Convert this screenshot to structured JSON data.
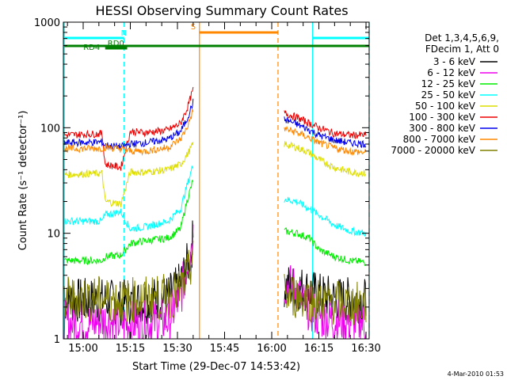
{
  "chart_data": {
    "type": "line",
    "title": "HESSI Observing Summary Count Rates",
    "xlabel": "Start Time (29-Dec-07 14:53:42)",
    "ylabel": "Count Rate (s⁻¹ detector⁻¹)",
    "yscale": "log",
    "ylim": [
      1,
      1000
    ],
    "xlim": [
      "14:53:42",
      "16:31:00"
    ],
    "x_ticks": [
      "15:00",
      "15:15",
      "15:30",
      "15:45",
      "16:00",
      "16:15",
      "16:30"
    ],
    "y_ticks": [
      "1",
      "10",
      "100",
      "1000"
    ],
    "legend_header": [
      "Det 1,3,4,5,6,9,",
      "FDecim 1, Att 0"
    ],
    "legend_position": "right",
    "data_gap": [
      "15:35",
      "16:04"
    ],
    "series": [
      {
        "name": "3 - 6 keV",
        "color": "#000000",
        "segments": [
          {
            "x": [
              "14:54",
              "15:06",
              "15:12",
              "15:20",
              "15:27",
              "15:30",
              "15:32",
              "15:34",
              "15:35"
            ],
            "y": [
              2.3,
              2.3,
              2.2,
              2.3,
              2.5,
              3,
              4,
              6,
              9
            ]
          },
          {
            "x": [
              "16:04",
              "16:10",
              "16:15",
              "16:20",
              "16:30"
            ],
            "y": [
              3.2,
              3,
              2.6,
              2.4,
              2.3
            ]
          }
        ]
      },
      {
        "name": "6 - 12 keV",
        "color": "#ee00ee",
        "segments": [
          {
            "x": [
              "14:54",
              "15:03",
              "15:06",
              "15:12",
              "15:20",
              "15:27",
              "15:31",
              "15:33",
              "15:35"
            ],
            "y": [
              1.4,
              1.4,
              1.5,
              1.4,
              1.4,
              1.5,
              2.5,
              5,
              10
            ]
          },
          {
            "x": [
              "16:04",
              "16:08",
              "16:10",
              "16:15",
              "16:20",
              "16:30"
            ],
            "y": [
              3.3,
              3,
              2.2,
              1.6,
              1.5,
              1.4
            ]
          }
        ]
      },
      {
        "name": "12 - 25 keV",
        "color": "#00ee00",
        "segments": [
          {
            "x": [
              "14:54",
              "15:06",
              "15:07",
              "15:12",
              "15:15",
              "15:20",
              "15:27",
              "15:31",
              "15:33",
              "15:35"
            ],
            "y": [
              5.5,
              5.5,
              6,
              6.2,
              8,
              8.5,
              9,
              11,
              20,
              32
            ]
          },
          {
            "x": [
              "16:04",
              "16:08",
              "16:12",
              "16:15",
              "16:20",
              "16:25",
              "16:30"
            ],
            "y": [
              10.5,
              10,
              9,
              7,
              6,
              5.5,
              5.3
            ]
          }
        ]
      },
      {
        "name": "25 - 50 keV",
        "color": "#00ffff",
        "segments": [
          {
            "x": [
              "14:54",
              "15:06",
              "15:07",
              "15:12",
              "15:15",
              "15:20",
              "15:27",
              "15:31",
              "15:33",
              "15:35"
            ],
            "y": [
              13,
              13,
              15,
              16,
              11,
              11.5,
              13,
              17,
              28,
              45
            ]
          },
          {
            "x": [
              "16:04",
              "16:08",
              "16:12",
              "16:15",
              "16:20",
              "16:25",
              "16:30"
            ],
            "y": [
              21,
              20,
              17,
              15,
              12,
              10.5,
              10
            ]
          }
        ]
      },
      {
        "name": "50 - 100 keV",
        "color": "#dddd00",
        "segments": [
          {
            "x": [
              "14:54",
              "15:06",
              "15:07",
              "15:12",
              "15:15",
              "15:20",
              "15:27",
              "15:31",
              "15:33",
              "15:35"
            ],
            "y": [
              36,
              37,
              20,
              19,
              38,
              38,
              40,
              45,
              55,
              70
            ]
          },
          {
            "x": [
              "16:04",
              "16:08",
              "16:12",
              "16:15",
              "16:20",
              "16:25",
              "16:30"
            ],
            "y": [
              70,
              65,
              58,
              50,
              42,
              38,
              37
            ]
          }
        ]
      },
      {
        "name": "100 - 300 keV",
        "color": "#ee0000",
        "segments": [
          {
            "x": [
              "14:54",
              "15:06",
              "15:07",
              "15:12",
              "15:15",
              "15:20",
              "15:27",
              "15:31",
              "15:33",
              "15:35"
            ],
            "y": [
              85,
              88,
              45,
              42,
              92,
              90,
              95,
              110,
              150,
              230
            ]
          },
          {
            "x": [
              "16:04",
              "16:08",
              "16:12",
              "16:15",
              "16:20",
              "16:25",
              "16:30"
            ],
            "y": [
              138,
              125,
              110,
              100,
              88,
              85,
              85
            ]
          }
        ]
      },
      {
        "name": "300 - 800 keV",
        "color": "#0000ee",
        "segments": [
          {
            "x": [
              "14:54",
              "15:06",
              "15:07",
              "15:12",
              "15:15",
              "15:20",
              "15:27",
              "15:31",
              "15:33",
              "15:35"
            ],
            "y": [
              72,
              73,
              68,
              66,
              70,
              72,
              78,
              92,
              120,
              175
            ]
          },
          {
            "x": [
              "16:04",
              "16:08",
              "16:12",
              "16:15",
              "16:20",
              "16:25",
              "16:30"
            ],
            "y": [
              120,
              108,
              95,
              85,
              76,
              72,
              70
            ]
          }
        ]
      },
      {
        "name": "800 - 7000 keV",
        "color": "#ff8800",
        "segments": [
          {
            "x": [
              "14:54",
              "15:06",
              "15:07",
              "15:12",
              "15:15",
              "15:20",
              "15:27",
              "15:31",
              "15:33",
              "15:35"
            ],
            "y": [
              63,
              64,
              65,
              63,
              60,
              60,
              65,
              78,
              100,
              145
            ]
          },
          {
            "x": [
              "16:04",
              "16:08",
              "16:12",
              "16:15",
              "16:20",
              "16:25",
              "16:30"
            ],
            "y": [
              98,
              90,
              80,
              72,
              64,
              60,
              58
            ]
          }
        ]
      },
      {
        "name": "7000 - 20000 keV",
        "color": "#808000",
        "segments": [
          {
            "x": [
              "14:54",
              "15:06",
              "15:12",
              "15:20",
              "15:27",
              "15:30",
              "15:32",
              "15:34",
              "15:35"
            ],
            "y": [
              2.4,
              2.4,
              2.3,
              2.4,
              2.5,
              2.7,
              3.3,
              4.5,
              7
            ]
          },
          {
            "x": [
              "16:04",
              "16:10",
              "16:15",
              "16:20",
              "16:30"
            ],
            "y": [
              2.6,
              2.5,
              2.3,
              2.2,
              2.1
            ]
          }
        ]
      }
    ],
    "annotations": [
      {
        "label": "N",
        "color": "#00ffff",
        "segments": [
          [
            "14:54",
            "15:13"
          ],
          [
            "16:13",
            "16:31"
          ]
        ]
      },
      {
        "label": "S",
        "color": "#ff8800",
        "segments": [
          [
            "15:37",
            "16:02"
          ]
        ]
      },
      {
        "label": "RD0",
        "color": "#008000",
        "segments": [
          [
            "15:07",
            "15:14"
          ]
        ]
      },
      {
        "label": "RD4",
        "color": "#008000",
        "segments": [
          [
            "14:54",
            "16:31"
          ]
        ]
      }
    ],
    "vertical_lines": [
      {
        "x": "14:54",
        "color": "#00ffff",
        "style": "solid"
      },
      {
        "x": "15:13",
        "color": "#00ffff",
        "style": "dashed"
      },
      {
        "x": "16:13",
        "color": "#00ffff",
        "style": "solid"
      },
      {
        "x": "16:31",
        "color": "#00ffff",
        "style": "dashed"
      },
      {
        "x": "15:37",
        "color": "#ff8800",
        "style": "solid"
      },
      {
        "x": "16:02",
        "color": "#ff8800",
        "style": "dashed"
      }
    ]
  },
  "footer": {
    "timestamp": "4-Mar-2010 01:53"
  }
}
